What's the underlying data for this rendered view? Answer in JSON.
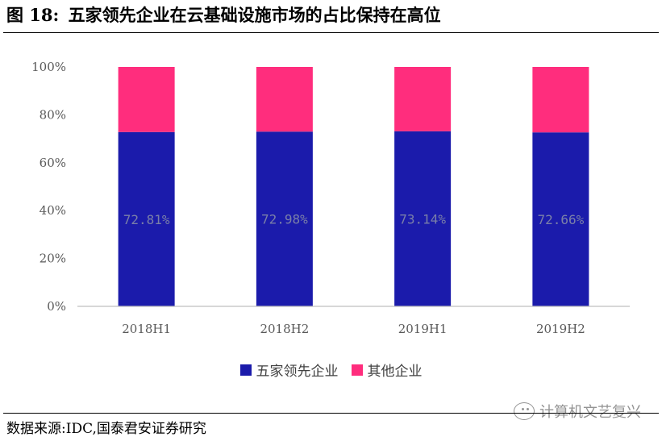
{
  "figure": {
    "label": "图 18:",
    "title": "五家领先企业在云基础设施市场的占比保持在高位"
  },
  "chart_data": {
    "type": "bar",
    "stacked": true,
    "categories": [
      "2018H1",
      "2018H2",
      "2019H1",
      "2019H2"
    ],
    "series": [
      {
        "name": "五家领先企业",
        "values": [
          72.81,
          72.98,
          73.14,
          72.66
        ],
        "labels": [
          "72.81%",
          "72.98%",
          "73.14%",
          "72.66%"
        ],
        "color": "#1B1BAB"
      },
      {
        "name": "其他企业",
        "values": [
          27.19,
          27.02,
          26.86,
          27.34
        ],
        "color": "#FF2D7D"
      }
    ],
    "ylim": [
      0,
      100
    ],
    "yticks": [
      0,
      20,
      40,
      60,
      80,
      100
    ],
    "ytick_labels": [
      "0%",
      "20%",
      "40%",
      "60%",
      "80%",
      "100%"
    ],
    "grid": false,
    "legend_position": "bottom"
  },
  "legend": {
    "items": [
      {
        "label": "五家领先企业",
        "color": "#1B1BAB"
      },
      {
        "label": "其他企业",
        "color": "#FF2D7D"
      }
    ]
  },
  "source": "数据来源:IDC,国泰君安证券研究",
  "watermark": {
    "text": "计算机文艺复兴",
    "icon": "wechat-icon"
  }
}
